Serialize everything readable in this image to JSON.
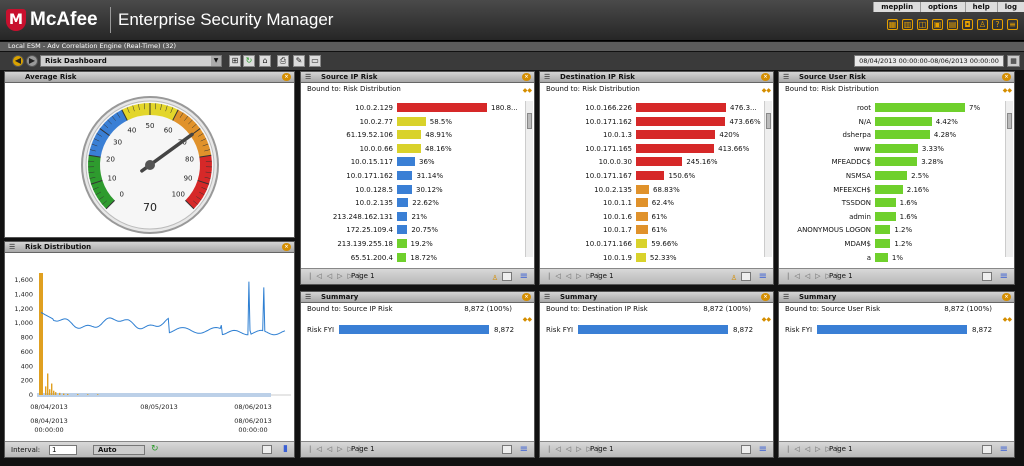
{
  "header": {
    "brand": "McAfee",
    "product": "Enterprise Security Manager",
    "user_links": [
      "mepplin",
      "options",
      "help",
      "log"
    ]
  },
  "breadcrumb": "Local ESM - Adv Correlation Engine (Real-Time) (32)",
  "toolbar": {
    "dashboard": "Risk Dashboard",
    "date_range": "08/04/2013 00:00:00-08/06/2013 00:00:00"
  },
  "avg_risk": {
    "title": "Average Risk",
    "value": "70",
    "ticks": [
      "0",
      "10",
      "20",
      "30",
      "40",
      "50",
      "60",
      "70",
      "80",
      "90",
      "100"
    ],
    "gauge_value": 70
  },
  "risk_dist": {
    "title": "Risk Distribution",
    "interval_label": "Interval:",
    "interval_value": "1",
    "auto_label": "Auto",
    "chart_data": {
      "type": "line",
      "y_ticks": [
        "0",
        "200",
        "400",
        "600",
        "800",
        "1,000",
        "1,200",
        "1,400",
        "1,600"
      ],
      "ylim": [
        0,
        1700
      ],
      "x_labels": [
        "08/04/2013",
        "08/05/2013",
        "08/06/2013"
      ],
      "x_labels_bottom": [
        "08/04/2013",
        "08/06/2013"
      ],
      "x_time": [
        "00:00:00",
        "00:00:00"
      ]
    }
  },
  "src_ip": {
    "title": "Source IP Risk",
    "bound": "Bound to: Risk Distribution",
    "page": "Page 1",
    "rows": [
      {
        "label": "10.0.2.129",
        "pct": "180.8...",
        "v": 100,
        "color": "#d62828"
      },
      {
        "label": "10.0.2.77",
        "pct": "58.5%",
        "v": 32,
        "color": "#d9d22b"
      },
      {
        "label": "61.19.52.106",
        "pct": "48.91%",
        "v": 27,
        "color": "#d9d22b"
      },
      {
        "label": "10.0.0.66",
        "pct": "48.16%",
        "v": 26.6,
        "color": "#d9d22b"
      },
      {
        "label": "10.0.15.117",
        "pct": "36%",
        "v": 20,
        "color": "#3a7fd5"
      },
      {
        "label": "10.0.171.162",
        "pct": "31.14%",
        "v": 17.2,
        "color": "#3a7fd5"
      },
      {
        "label": "10.0.128.5",
        "pct": "30.12%",
        "v": 16.7,
        "color": "#3a7fd5"
      },
      {
        "label": "10.0.2.135",
        "pct": "22.62%",
        "v": 12.5,
        "color": "#3a7fd5"
      },
      {
        "label": "213.248.162.131",
        "pct": "21%",
        "v": 11.6,
        "color": "#3a7fd5"
      },
      {
        "label": "172.25.109.4",
        "pct": "20.75%",
        "v": 11.5,
        "color": "#3a7fd5"
      },
      {
        "label": "213.139.255.18",
        "pct": "19.2%",
        "v": 10.6,
        "color": "#6fd02c"
      },
      {
        "label": "65.51.200.4",
        "pct": "18.72%",
        "v": 10.4,
        "color": "#6fd02c"
      }
    ]
  },
  "dst_ip": {
    "title": "Destination IP Risk",
    "bound": "Bound to: Risk Distribution",
    "page": "Page 1",
    "rows": [
      {
        "label": "10.0.166.226",
        "pct": "476.3...",
        "v": 100,
        "color": "#d62828"
      },
      {
        "label": "10.0.171.162",
        "pct": "473.66%",
        "v": 99.4,
        "color": "#d62828"
      },
      {
        "label": "10.0.1.3",
        "pct": "420%",
        "v": 88.2,
        "color": "#d62828"
      },
      {
        "label": "10.0.171.165",
        "pct": "413.66%",
        "v": 86.8,
        "color": "#d62828"
      },
      {
        "label": "10.0.0.30",
        "pct": "245.16%",
        "v": 51.5,
        "color": "#d62828"
      },
      {
        "label": "10.0.171.167",
        "pct": "150.6%",
        "v": 31.6,
        "color": "#d62828"
      },
      {
        "label": "10.0.2.135",
        "pct": "68.83%",
        "v": 14.5,
        "color": "#e0922b"
      },
      {
        "label": "10.0.1.1",
        "pct": "62.4%",
        "v": 13.1,
        "color": "#e0922b"
      },
      {
        "label": "10.0.1.6",
        "pct": "61%",
        "v": 12.8,
        "color": "#e0922b"
      },
      {
        "label": "10.0.1.7",
        "pct": "61%",
        "v": 12.8,
        "color": "#e0922b"
      },
      {
        "label": "10.0.171.166",
        "pct": "59.66%",
        "v": 12.5,
        "color": "#d9d22b"
      },
      {
        "label": "10.0.1.9",
        "pct": "52.33%",
        "v": 11,
        "color": "#d9d22b"
      }
    ]
  },
  "src_user": {
    "title": "Source User Risk",
    "bound": "Bound to: Risk Distribution",
    "page": "Page 1",
    "rows": [
      {
        "label": "root",
        "pct": "7%",
        "v": 100,
        "color": "#6fd02c"
      },
      {
        "label": "N/A",
        "pct": "4.42%",
        "v": 63,
        "color": "#6fd02c"
      },
      {
        "label": "dsherpa",
        "pct": "4.28%",
        "v": 61,
        "color": "#6fd02c"
      },
      {
        "label": "www",
        "pct": "3.33%",
        "v": 47.6,
        "color": "#6fd02c"
      },
      {
        "label": "MFEADDC$",
        "pct": "3.28%",
        "v": 46.9,
        "color": "#6fd02c"
      },
      {
        "label": "NSMSA",
        "pct": "2.5%",
        "v": 35.7,
        "color": "#6fd02c"
      },
      {
        "label": "MFEEXCH$",
        "pct": "2.16%",
        "v": 30.9,
        "color": "#6fd02c"
      },
      {
        "label": "TSSDON",
        "pct": "1.6%",
        "v": 22.9,
        "color": "#6fd02c"
      },
      {
        "label": "admin",
        "pct": "1.6%",
        "v": 22.9,
        "color": "#6fd02c"
      },
      {
        "label": "ANONYMOUS LOGON",
        "pct": "1.2%",
        "v": 17.1,
        "color": "#6fd02c"
      },
      {
        "label": "MDAM$",
        "pct": "1.2%",
        "v": 17.1,
        "color": "#6fd02c"
      },
      {
        "label": "a",
        "pct": "1%",
        "v": 14.3,
        "color": "#6fd02c"
      }
    ]
  },
  "summaries": [
    {
      "title": "Summary",
      "bound": "Bound to: Source IP Risk",
      "total": "8,872 (100%)",
      "row_label": "Risk FYI",
      "row_value": "8,872",
      "page": "Page 1"
    },
    {
      "title": "Summary",
      "bound": "Bound to: Destination IP Risk",
      "total": "8,872 (100%)",
      "row_label": "Risk FYI",
      "row_value": "8,872",
      "page": "Page 1"
    },
    {
      "title": "Summary",
      "bound": "Bound to: Source User Risk",
      "total": "8,872 (100%)",
      "row_label": "Risk FYI",
      "row_value": "8,872",
      "page": "Page 1"
    }
  ]
}
